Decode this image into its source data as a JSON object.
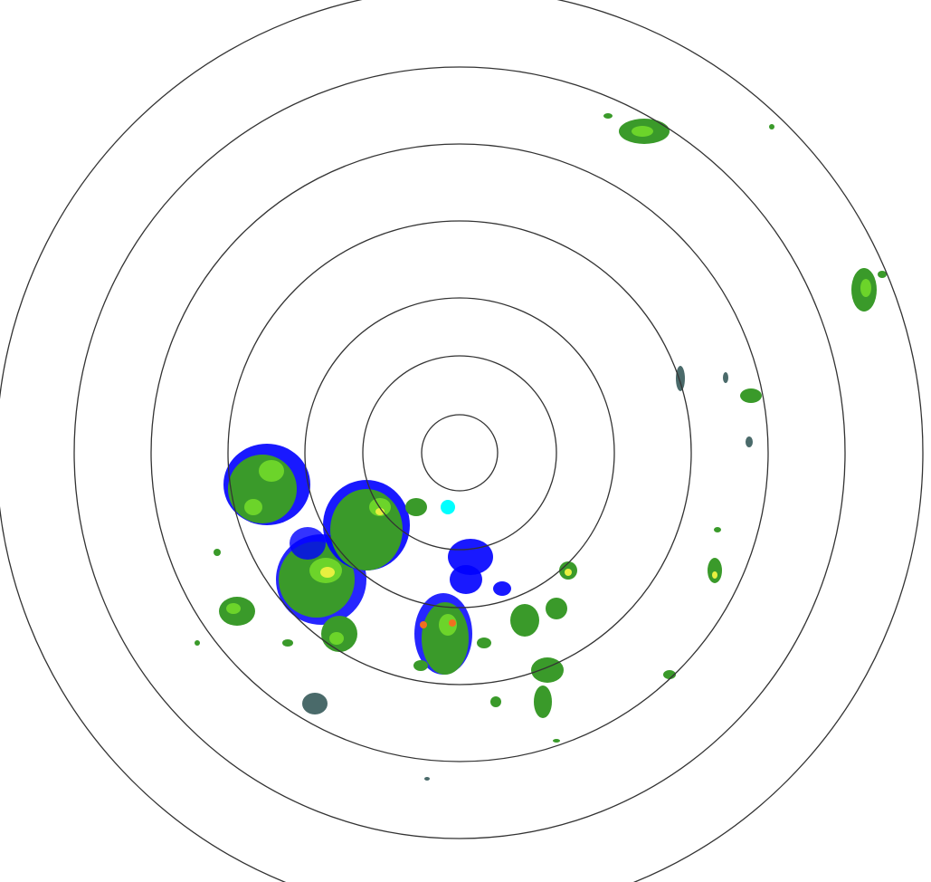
{
  "radar": {
    "ring_color": "#333333",
    "background": "#ffffff",
    "palette": {
      "weak": "#0000ff",
      "light": "#00ffff",
      "moderate": "#3a9a2a",
      "moderate_bright": "#6cd42a",
      "strong": "#e8f040",
      "very_strong": "#f07020",
      "muted": "#4a6a6a"
    }
  }
}
